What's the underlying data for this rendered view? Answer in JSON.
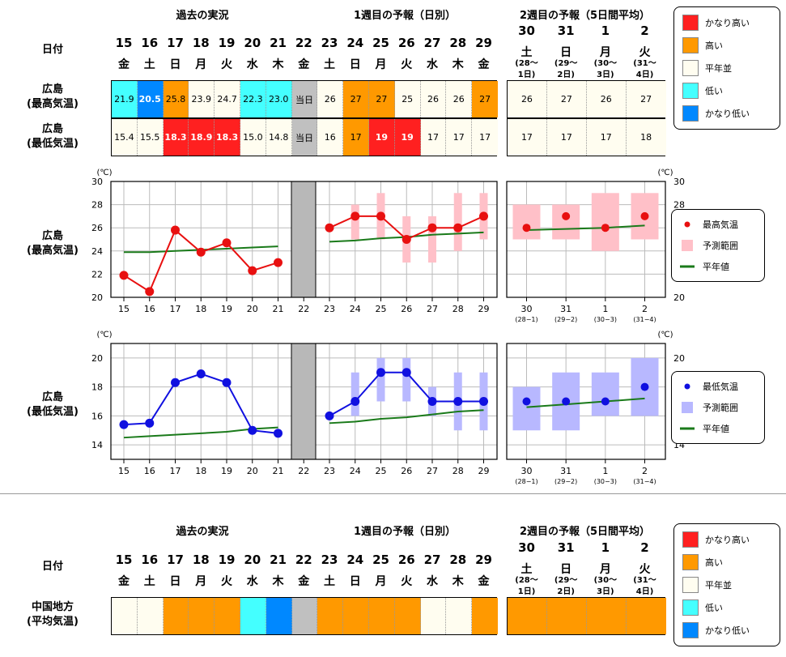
{
  "headers": {
    "past": "過去の実況",
    "week1": "1週目の予報（日別）",
    "week2": "2週目の予報（5日間平均）",
    "date_label": "日付"
  },
  "days": [
    {
      "d": "15",
      "w": "金"
    },
    {
      "d": "16",
      "w": "土"
    },
    {
      "d": "17",
      "w": "日"
    },
    {
      "d": "18",
      "w": "月"
    },
    {
      "d": "19",
      "w": "火"
    },
    {
      "d": "20",
      "w": "水"
    },
    {
      "d": "21",
      "w": "木"
    },
    {
      "d": "22",
      "w": "金"
    },
    {
      "d": "23",
      "w": "土"
    },
    {
      "d": "24",
      "w": "日"
    },
    {
      "d": "25",
      "w": "月"
    },
    {
      "d": "26",
      "w": "火"
    },
    {
      "d": "27",
      "w": "水"
    },
    {
      "d": "28",
      "w": "木"
    },
    {
      "d": "29",
      "w": "金"
    }
  ],
  "week2_days": [
    {
      "d": "30",
      "w": "土",
      "r1": "(28～",
      "r2": "1日)",
      "short": "(28−1)"
    },
    {
      "d": "31",
      "w": "日",
      "r1": "(29～",
      "r2": "2日)",
      "short": "(29−2)"
    },
    {
      "d": "1",
      "w": "月",
      "r1": "(30～",
      "r2": "3日)",
      "short": "(30−3)"
    },
    {
      "d": "2",
      "w": "火",
      "r1": "(31～",
      "r2": "4日)",
      "short": "(31−4)"
    }
  ],
  "today_label": "当日",
  "rows": {
    "max_label": [
      "広島",
      "(最高気温)"
    ],
    "min_label": [
      "広島",
      "(最低気温)"
    ],
    "region_label": [
      "中国地方",
      "(平均気温)"
    ]
  },
  "colors": {
    "very_high": "#ff2020",
    "high": "#ff9900",
    "normal": "#fffdf0",
    "low": "#44ffff",
    "very_low": "#0088ff",
    "today": "#c0c0c0",
    "max_line": "#e81010",
    "max_range": "#ffc0c8",
    "min_line": "#1010e0",
    "min_range": "#b8b8ff",
    "normal_line": "#1a7a1a"
  },
  "legend_categories": [
    "かなり高い",
    "高い",
    "平年並",
    "低い",
    "かなり低い"
  ],
  "legend_max": [
    "最高気温",
    "予測範囲",
    "平年値"
  ],
  "legend_min": [
    "最低気温",
    "予測範囲",
    "平年値"
  ],
  "max_table": {
    "values": [
      "21.9",
      "20.5",
      "25.8",
      "23.9",
      "24.7",
      "22.3",
      "23.0",
      "当日",
      "26",
      "27",
      "27",
      "25",
      "26",
      "26",
      "27"
    ],
    "classes": [
      "low",
      "very_low",
      "high",
      "normal",
      "normal",
      "low",
      "low",
      "today",
      "normal",
      "high",
      "high",
      "normal",
      "normal",
      "normal",
      "high"
    ],
    "week2_values": [
      "26",
      "27",
      "26",
      "27"
    ],
    "week2_classes": [
      "normal",
      "normal",
      "normal",
      "normal"
    ]
  },
  "min_table": {
    "values": [
      "15.4",
      "15.5",
      "18.3",
      "18.9",
      "18.3",
      "15.0",
      "14.8",
      "当日",
      "16",
      "17",
      "19",
      "19",
      "17",
      "17",
      "17"
    ],
    "classes": [
      "normal",
      "normal",
      "very_high",
      "very_high",
      "very_high",
      "normal",
      "normal",
      "today",
      "normal",
      "high",
      "very_high",
      "very_high",
      "normal",
      "normal",
      "normal"
    ],
    "week2_values": [
      "17",
      "17",
      "17",
      "18"
    ],
    "week2_classes": [
      "normal",
      "normal",
      "normal",
      "normal"
    ]
  },
  "region_table": {
    "classes": [
      "normal",
      "normal",
      "high",
      "high",
      "high",
      "low",
      "very_low",
      "today",
      "high",
      "high",
      "high",
      "high",
      "normal",
      "normal",
      "high"
    ],
    "week2_classes": [
      "high",
      "high",
      "high",
      "high"
    ]
  },
  "chart_data": [
    {
      "type": "line",
      "unit": "(℃)",
      "ylim": [
        20,
        30
      ],
      "yticks": [
        20,
        22,
        24,
        26,
        28,
        30
      ],
      "categories": [
        "15",
        "16",
        "17",
        "18",
        "19",
        "20",
        "21",
        "22",
        "23",
        "24",
        "25",
        "26",
        "27",
        "28",
        "29"
      ],
      "observed": [
        21.9,
        20.5,
        25.8,
        23.9,
        24.7,
        22.3,
        23.0,
        null,
        null,
        null,
        null,
        null,
        null,
        null,
        null
      ],
      "forecast": [
        null,
        null,
        null,
        null,
        null,
        null,
        null,
        null,
        26,
        27,
        27,
        25,
        26,
        26,
        27
      ],
      "range": [
        null,
        null,
        null,
        null,
        null,
        null,
        null,
        null,
        null,
        [
          25,
          28
        ],
        [
          25,
          29
        ],
        [
          23,
          27
        ],
        [
          23,
          27
        ],
        [
          24,
          29
        ],
        [
          25,
          29
        ]
      ],
      "normal": [
        23.9,
        23.9,
        24.0,
        24.1,
        24.2,
        24.3,
        24.4,
        null,
        24.8,
        24.9,
        25.1,
        25.2,
        25.4,
        25.5,
        25.6
      ],
      "week2_categories": [
        "30",
        "31",
        "1",
        "2"
      ],
      "week2_forecast": [
        26,
        27,
        26,
        27
      ],
      "week2_range": [
        [
          25,
          28
        ],
        [
          25,
          28
        ],
        [
          24,
          29
        ],
        [
          25,
          29
        ]
      ],
      "week2_normal": [
        25.8,
        25.9,
        26.0,
        26.2
      ]
    },
    {
      "type": "line",
      "unit": "(℃)",
      "ylim": [
        13,
        21
      ],
      "yticks": [
        14,
        16,
        18,
        20
      ],
      "categories": [
        "15",
        "16",
        "17",
        "18",
        "19",
        "20",
        "21",
        "22",
        "23",
        "24",
        "25",
        "26",
        "27",
        "28",
        "29"
      ],
      "observed": [
        15.4,
        15.5,
        18.3,
        18.9,
        18.3,
        15.0,
        14.8,
        null,
        null,
        null,
        null,
        null,
        null,
        null,
        null
      ],
      "forecast": [
        null,
        null,
        null,
        null,
        null,
        null,
        null,
        null,
        16,
        17,
        19,
        19,
        17,
        17,
        17
      ],
      "range": [
        null,
        null,
        null,
        null,
        null,
        null,
        null,
        null,
        null,
        [
          16,
          19
        ],
        [
          17,
          20
        ],
        [
          17,
          20
        ],
        [
          16,
          18
        ],
        [
          15,
          19
        ],
        [
          15,
          19
        ]
      ],
      "normal": [
        14.5,
        14.6,
        14.7,
        14.8,
        14.9,
        15.1,
        15.2,
        null,
        15.5,
        15.6,
        15.8,
        15.9,
        16.1,
        16.3,
        16.4
      ],
      "week2_categories": [
        "30",
        "31",
        "1",
        "2"
      ],
      "week2_forecast": [
        17,
        17,
        17,
        18
      ],
      "week2_range": [
        [
          15,
          18
        ],
        [
          15,
          19
        ],
        [
          16,
          19
        ],
        [
          16,
          20
        ]
      ],
      "week2_normal": [
        16.6,
        16.8,
        17.0,
        17.2
      ]
    }
  ]
}
